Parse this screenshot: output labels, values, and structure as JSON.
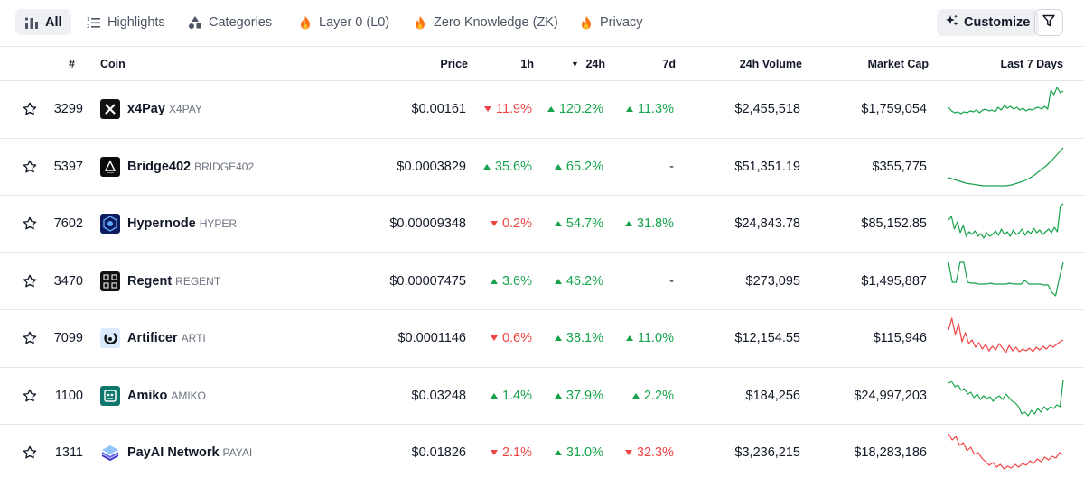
{
  "tabs": [
    {
      "label": "All",
      "icon": "bar-chart-icon",
      "active": true
    },
    {
      "label": "Highlights",
      "icon": "list-icon",
      "active": false
    },
    {
      "label": "Categories",
      "icon": "shapes-icon",
      "active": false
    },
    {
      "label": "Layer 0 (L0)",
      "icon": "fire-icon",
      "active": false
    },
    {
      "label": "Zero Knowledge (ZK)",
      "icon": "fire-icon",
      "active": false
    },
    {
      "label": "Privacy",
      "icon": "fire-icon",
      "active": false
    }
  ],
  "toolbar": {
    "customize_label": "Customize",
    "customize_icon": "sparkle-icon",
    "filter_icon": "filter-icon"
  },
  "columns": {
    "rank": "#",
    "coin": "Coin",
    "price": "Price",
    "h1": "1h",
    "h24": "24h",
    "d7": "7d",
    "volume": "24h Volume",
    "market_cap": "Market Cap",
    "last7": "Last 7 Days",
    "sort_indicator": "▼"
  },
  "colors": {
    "up": "#16a34a",
    "down": "#ef4444",
    "active_tab_bg": "#eef0f3"
  },
  "rows": [
    {
      "rank": "3299",
      "name": "x4Pay",
      "symbol": "X4PAY",
      "price": "$0.00161",
      "h1": "11.9%",
      "h1_dir": "down",
      "h24": "120.2%",
      "h24_dir": "up",
      "d7": "11.3%",
      "d7_dir": "up",
      "volume": "$2,455,518",
      "market_cap": "$1,759,054",
      "trend": "up",
      "spark": [
        22,
        26,
        28,
        27,
        29,
        27,
        28,
        26,
        27,
        25,
        28,
        25,
        24,
        26,
        25,
        27,
        22,
        25,
        20,
        23,
        21,
        24,
        22,
        25,
        23,
        26,
        24,
        25,
        23,
        22,
        24,
        21,
        24,
        3,
        8,
        0,
        6,
        4
      ]
    },
    {
      "rank": "5397",
      "name": "Bridge402",
      "symbol": "BRIDGE402",
      "price": "$0.0003829",
      "h1": "35.6%",
      "h1_dir": "up",
      "h24": "65.2%",
      "h24_dir": "up",
      "d7": "-",
      "d7_dir": "none",
      "volume": "$51,351.19",
      "market_cap": "$355,775",
      "trend": "up",
      "spark": [
        36,
        38,
        40,
        42,
        43,
        44,
        45,
        45,
        45,
        45,
        45,
        44,
        42,
        40,
        37,
        33,
        28,
        23,
        17,
        10,
        3
      ]
    },
    {
      "rank": "7602",
      "name": "Hypernode",
      "symbol": "HYPER",
      "price": "$0.00009348",
      "h1": "0.2%",
      "h1_dir": "down",
      "h24": "54.7%",
      "h24_dir": "up",
      "d7": "31.8%",
      "d7_dir": "up",
      "volume": "$24,843.78",
      "market_cap": "$85,152.85",
      "trend": "up",
      "spark": [
        20,
        16,
        30,
        22,
        34,
        26,
        38,
        33,
        36,
        32,
        38,
        35,
        40,
        34,
        38,
        36,
        32,
        37,
        30,
        36,
        33,
        38,
        31,
        36,
        34,
        30,
        37,
        32,
        35,
        29,
        34,
        31,
        36,
        33,
        30,
        34,
        28,
        33,
        5,
        2
      ]
    },
    {
      "rank": "3470",
      "name": "Regent",
      "symbol": "REGENT",
      "price": "$0.00007475",
      "h1": "3.6%",
      "h1_dir": "up",
      "h24": "46.2%",
      "h24_dir": "up",
      "d7": "-",
      "d7_dir": "none",
      "volume": "$273,095",
      "market_cap": "$1,495,887",
      "trend": "up",
      "spark": [
        3,
        25,
        25,
        3,
        3,
        25,
        26,
        26,
        27,
        27,
        27,
        26,
        27,
        27,
        27,
        27,
        26,
        27,
        27,
        27,
        23,
        27,
        27,
        27,
        27,
        28,
        28,
        36,
        40,
        20,
        3
      ]
    },
    {
      "rank": "7099",
      "name": "Artificer",
      "symbol": "ARTI",
      "price": "$0.0001146",
      "h1": "0.6%",
      "h1_dir": "down",
      "h24": "38.1%",
      "h24_dir": "up",
      "d7": "11.0%",
      "d7_dir": "up",
      "volume": "$12,154.55",
      "market_cap": "$115,946",
      "trend": "down",
      "spark": [
        15,
        2,
        20,
        8,
        28,
        18,
        30,
        26,
        34,
        29,
        36,
        31,
        38,
        33,
        37,
        30,
        35,
        40,
        32,
        38,
        34,
        39,
        36,
        38,
        35,
        39,
        34,
        37,
        33,
        36,
        32,
        34,
        31,
        28,
        26
      ]
    },
    {
      "rank": "1100",
      "name": "Amiko",
      "symbol": "AMIKO",
      "price": "$0.03248",
      "h1": "1.4%",
      "h1_dir": "up",
      "h24": "37.9%",
      "h24_dir": "up",
      "d7": "2.2%",
      "d7_dir": "up",
      "volume": "$184,256",
      "market_cap": "$24,997,203",
      "trend": "up",
      "spark": [
        10,
        8,
        14,
        12,
        18,
        16,
        22,
        20,
        26,
        22,
        28,
        24,
        27,
        25,
        30,
        26,
        24,
        28,
        22,
        26,
        30,
        32,
        36,
        44,
        42,
        46,
        40,
        44,
        38,
        42,
        36,
        40,
        36,
        38,
        34,
        36,
        6
      ]
    },
    {
      "rank": "1311",
      "name": "PayAI Network",
      "symbol": "PAYAI",
      "price": "$0.01826",
      "h1": "2.1%",
      "h1_dir": "down",
      "h24": "31.0%",
      "h24_dir": "up",
      "d7": "32.3%",
      "d7_dir": "down",
      "volume": "$3,236,215",
      "market_cap": "$18,283,186",
      "trend": "down",
      "spark": [
        3,
        10,
        6,
        16,
        13,
        22,
        18,
        26,
        24,
        30,
        34,
        38,
        35,
        40,
        37,
        42,
        39,
        41,
        37,
        40,
        36,
        38,
        33,
        36,
        31,
        34,
        29,
        32,
        28,
        30,
        24,
        26
      ]
    }
  ]
}
